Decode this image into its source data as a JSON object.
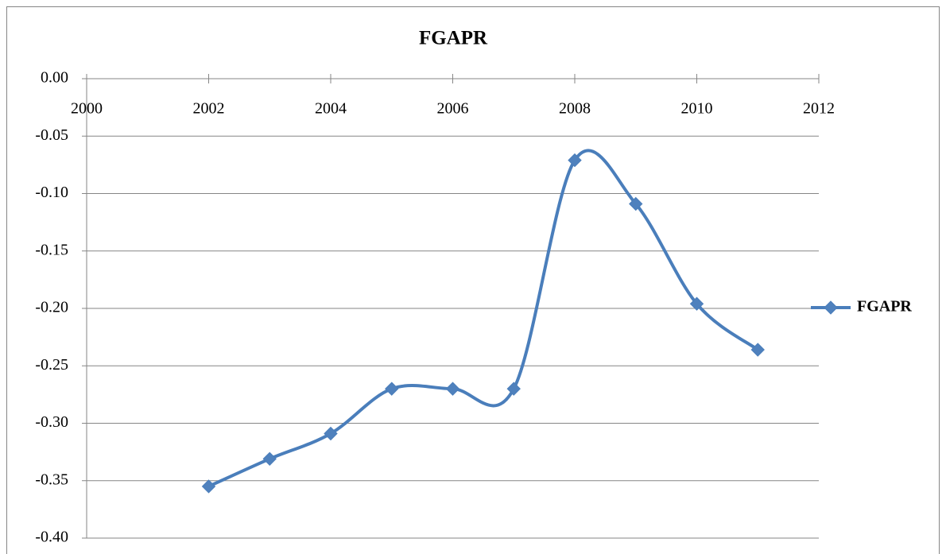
{
  "chart_data": {
    "type": "line",
    "title": "FGAPR",
    "smooth": true,
    "markers": "diamond",
    "legend": "right",
    "grid": true,
    "x": [
      2002,
      2003,
      2004,
      2005,
      2006,
      2007,
      2008,
      2009,
      2010,
      2011
    ],
    "series": [
      {
        "name": "FGAPR",
        "color": "#4a7ebb",
        "values": [
          -0.355,
          -0.331,
          -0.309,
          -0.27,
          -0.27,
          -0.27,
          -0.071,
          -0.109,
          -0.196,
          -0.236
        ]
      }
    ],
    "xlim": [
      2000,
      2012
    ],
    "xticks": [
      2000,
      2002,
      2004,
      2006,
      2008,
      2010,
      2012
    ],
    "ylim": [
      -0.4,
      0
    ],
    "yticks": [
      {
        "value": 0,
        "label": "0.00"
      },
      {
        "value": -0.05,
        "label": "-0.05"
      },
      {
        "value": -0.1,
        "label": "-0.10"
      },
      {
        "value": -0.15,
        "label": "-0.15"
      },
      {
        "value": -0.2,
        "label": "-0.20"
      },
      {
        "value": -0.25,
        "label": "-0.25"
      },
      {
        "value": -0.3,
        "label": "-0.30"
      },
      {
        "value": -0.35,
        "label": "-0.35"
      },
      {
        "value": -0.4,
        "label": "-0.40"
      }
    ]
  }
}
